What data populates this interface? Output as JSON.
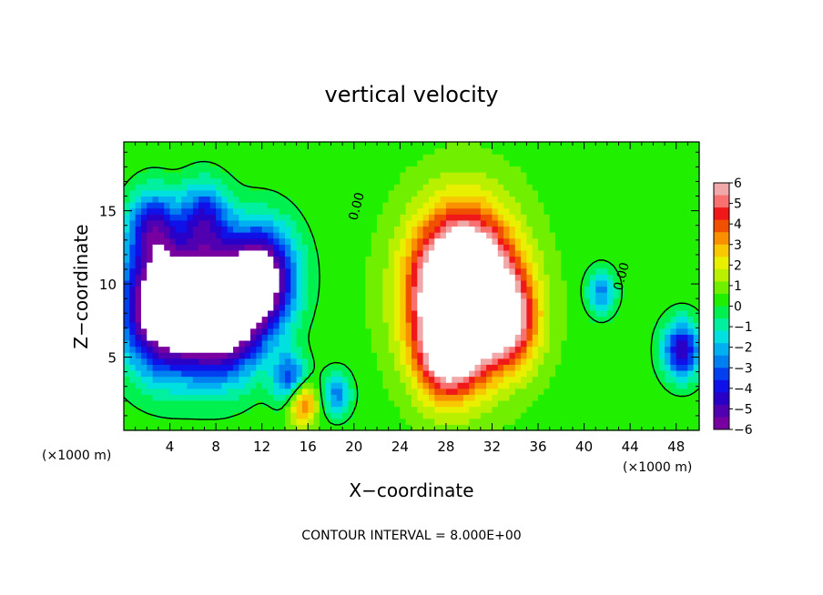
{
  "chart_data": {
    "type": "heatmap",
    "title": "vertical velocity",
    "xlabel": "X−coordinate",
    "ylabel": "Z−coordinate",
    "x_unit_left": "(×1000 m)",
    "x_unit_right": "(×1000 m)",
    "xlim": [
      0,
      50
    ],
    "ylim": [
      0,
      19.7
    ],
    "x_ticks": [
      4,
      8,
      12,
      16,
      20,
      24,
      28,
      32,
      36,
      40,
      44,
      48
    ],
    "y_ticks": [
      5,
      10,
      15
    ],
    "footer": "CONTOUR INTERVAL = 8.000E+00",
    "contour_labels": [
      "0.00",
      "0.00"
    ],
    "colorbar": {
      "range": [
        -6,
        6
      ],
      "labels": [
        "6",
        "5",
        "4",
        "3",
        "2",
        "1",
        "0",
        "−1",
        "−2",
        "−3",
        "−4",
        "−5",
        "−6"
      ],
      "colors": [
        "#f0a8a8",
        "#f87070",
        "#f01818",
        "#f05000",
        "#f89000",
        "#f8c800",
        "#e8f000",
        "#b8f000",
        "#70f000",
        "#20f000",
        "#00f050",
        "#00f0a0",
        "#00e0e0",
        "#00b0f0",
        "#0080f0",
        "#0040f0",
        "#1010e8",
        "#2800c8",
        "#5000b0",
        "#7800a0"
      ]
    },
    "features": [
      {
        "x": 3.5,
        "z": 8.5,
        "w": 0.85,
        "strength": -9
      },
      {
        "x": 8.5,
        "z": 8.0,
        "w": 0.8,
        "strength": -9
      },
      {
        "x": 12.0,
        "z": 10.5,
        "w": 0.7,
        "strength": -7
      },
      {
        "x": 2.5,
        "z": 14.0,
        "w": 0.5,
        "strength": -4
      },
      {
        "x": 7.0,
        "z": 14.5,
        "w": 0.5,
        "strength": -4
      },
      {
        "x": 14.5,
        "z": 3.5,
        "w": 0.35,
        "strength": -4
      },
      {
        "x": 18.5,
        "z": 2.5,
        "w": 0.3,
        "strength": -3
      },
      {
        "x": 29.5,
        "z": 9.5,
        "w": 1.0,
        "strength": 12
      },
      {
        "x": 28.0,
        "z": 5.0,
        "w": 0.6,
        "strength": 4
      },
      {
        "x": 33.5,
        "z": 7.5,
        "w": 0.6,
        "strength": 4
      },
      {
        "x": 15.5,
        "z": 2.0,
        "w": 0.3,
        "strength": 4
      },
      {
        "x": 41.5,
        "z": 9.5,
        "w": 0.3,
        "strength": -3
      },
      {
        "x": 48.5,
        "z": 5.5,
        "w": 0.4,
        "strength": -5
      }
    ]
  }
}
